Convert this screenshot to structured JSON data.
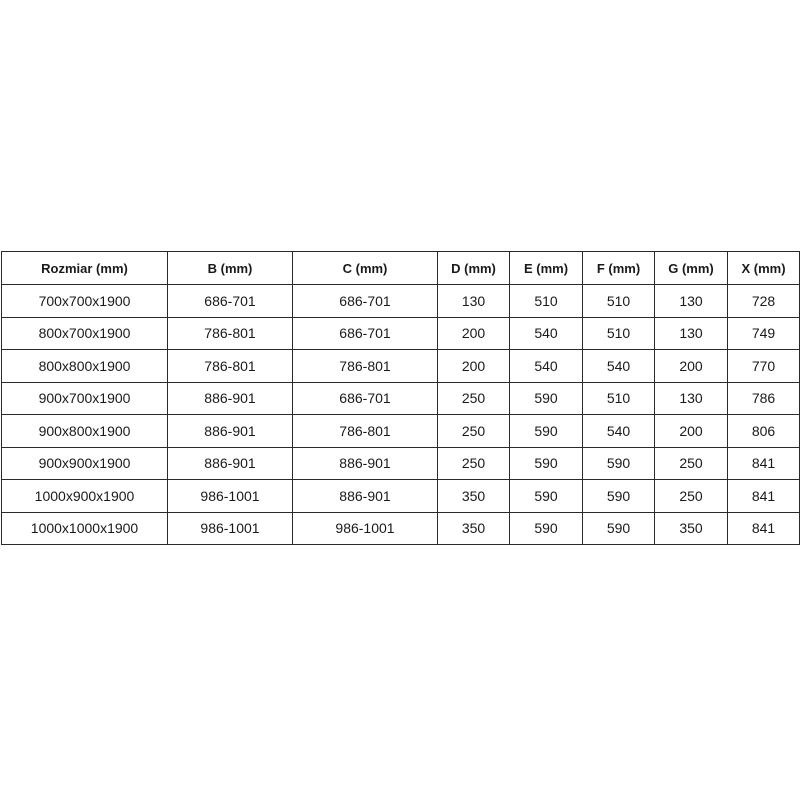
{
  "table": {
    "headers": [
      "Rozmiar (mm)",
      "B (mm)",
      "C (mm)",
      "D (mm)",
      "E (mm)",
      "F (mm)",
      "G (mm)",
      "X (mm)"
    ],
    "rows": [
      [
        "700x700x1900",
        "686-701",
        "686-701",
        "130",
        "510",
        "510",
        "130",
        "728"
      ],
      [
        "800x700x1900",
        "786-801",
        "686-701",
        "200",
        "540",
        "510",
        "130",
        "749"
      ],
      [
        "800x800x1900",
        "786-801",
        "786-801",
        "200",
        "540",
        "540",
        "200",
        "770"
      ],
      [
        "900x700x1900",
        "886-901",
        "686-701",
        "250",
        "590",
        "510",
        "130",
        "786"
      ],
      [
        "900x800x1900",
        "886-901",
        "786-801",
        "250",
        "590",
        "540",
        "200",
        "806"
      ],
      [
        "900x900x1900",
        "886-901",
        "886-901",
        "250",
        "590",
        "590",
        "250",
        "841"
      ],
      [
        "1000x900x1900",
        "986-1001",
        "886-901",
        "350",
        "590",
        "590",
        "250",
        "841"
      ],
      [
        "1000x1000x1900",
        "986-1001",
        "986-1001",
        "350",
        "590",
        "590",
        "350",
        "841"
      ]
    ]
  }
}
